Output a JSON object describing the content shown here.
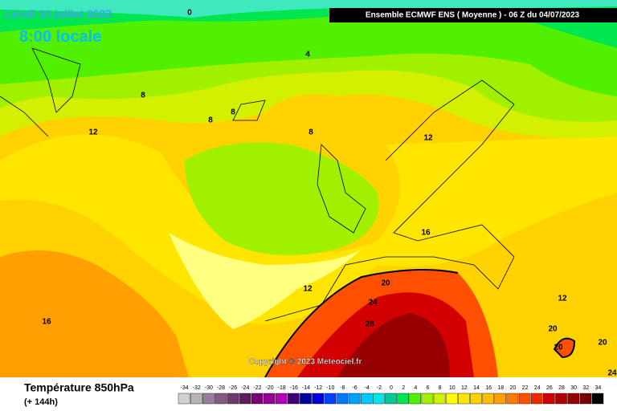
{
  "header": {
    "date": "Lundi 10 juillet 2023",
    "time": "8:00 locale",
    "model": "Ensemble ECMWF ENS  ( Moyenne )  -  06 Z du 04/07/2023"
  },
  "copyright": "Copyright © 2023 Meteociel.fr",
  "footer": {
    "title": "Température 850hPa",
    "lead": "(+ 144h)"
  },
  "contour_labels": [
    "0",
    "4",
    "8",
    "8",
    "8",
    "8",
    "12",
    "12",
    "12",
    "12",
    "16",
    "16",
    "20",
    "20",
    "20",
    "20",
    "24",
    "24",
    "28"
  ],
  "legend": {
    "values": [
      -34,
      -32,
      -30,
      -28,
      -26,
      -24,
      -22,
      -20,
      -18,
      -16,
      -14,
      -12,
      -10,
      -8,
      -6,
      -4,
      -2,
      0,
      2,
      4,
      6,
      8,
      10,
      12,
      14,
      16,
      18,
      20,
      22,
      24,
      26,
      28,
      30,
      32,
      34
    ],
    "colors": [
      "#d0d0d0",
      "#b4b4b4",
      "#9c7c9c",
      "#845a84",
      "#6c3c6c",
      "#5a1e5a",
      "#780078",
      "#960096",
      "#b400b4",
      "#3c0078",
      "#0000a0",
      "#0000dc",
      "#0040ff",
      "#0078ff",
      "#00a0ff",
      "#00c8ff",
      "#00e6e6",
      "#00c896",
      "#00e650",
      "#50f000",
      "#a0f000",
      "#d2f000",
      "#ffff00",
      "#ffe600",
      "#ffd200",
      "#ffbe00",
      "#ffa000",
      "#ff7800",
      "#ff5000",
      "#f02800",
      "#d20000",
      "#b40000",
      "#960000",
      "#780000",
      "#000000"
    ]
  }
}
